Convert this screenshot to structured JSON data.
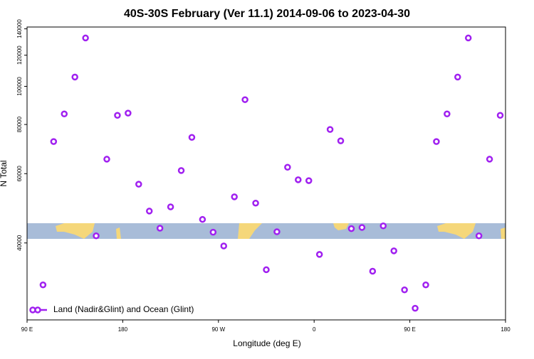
{
  "chart_data": {
    "type": "scatter",
    "title": "40S-30S February (Ver 11.1)   2014-09-06 to 2023-04-30",
    "x_label": "Longitude (deg E)",
    "y_label": "N Total",
    "x": [
      105,
      115,
      125,
      135,
      145,
      155,
      165,
      175,
      185,
      195,
      205,
      215,
      225,
      235,
      245,
      255,
      265,
      275,
      285,
      295,
      305,
      315,
      325,
      335,
      345,
      355,
      365,
      375,
      385,
      395,
      405,
      415,
      425,
      435,
      445,
      455,
      465,
      475,
      485,
      495,
      505,
      515,
      525,
      535
    ],
    "series": [
      {
        "name": "Land (Nadir&Glint) and Ocean (Glint)",
        "color": "#a020f0",
        "values": [
          31300,
          72400,
          85100,
          105600,
          132700,
          41700,
          65300,
          84400,
          85500,
          56400,
          48200,
          43600,
          49400,
          61100,
          74200,
          45900,
          42600,
          39300,
          52400,
          92500,
          50500,
          34200,
          42700,
          62300,
          57900,
          57600,
          37400,
          77700,
          72700,
          43500,
          43800,
          33900,
          44200,
          38200,
          30400,
          27300,
          31300,
          72400,
          85100,
          105600,
          132700,
          41700,
          65300,
          84400
        ]
      }
    ],
    "xlim": [
      90,
      540
    ],
    "xticks": [
      {
        "value": 90,
        "label": "90 E"
      },
      180,
      {
        "value": 270,
        "label": "90 W"
      },
      {
        "value": 360,
        "label": "0"
      },
      {
        "value": 450,
        "label": "90 E"
      },
      {
        "value": 540,
        "label": "180"
      }
    ],
    "ylim": [
      25500,
      141500
    ],
    "yticks": [
      40000,
      60000,
      80000,
      100000,
      120000,
      140000
    ],
    "log_y": true,
    "legend": "bottom-left"
  }
}
